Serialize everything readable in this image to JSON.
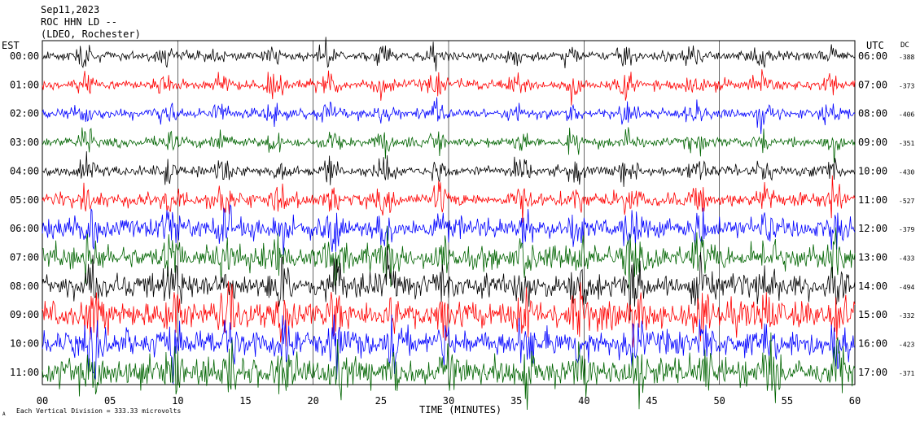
{
  "header": {
    "date": "Sep11,2023",
    "station": "ROC HHN LD --",
    "network": "(LDEO, Rochester)"
  },
  "left_axis_label": "EST",
  "right_axis_label": "UTC",
  "dc_label": "DC",
  "footer": {
    "xlabel": "TIME (MINUTES)",
    "scale_note": "Each Vertical Division = 333.33 microvolts",
    "corner_mark": "A"
  },
  "colors": {
    "black": "#000000",
    "red": "#ff0000",
    "blue": "#0000ff",
    "green": "#006400"
  },
  "chart_data": {
    "type": "line",
    "subtype": "seismogram-helicorder",
    "x_range_minutes": [
      0,
      60
    ],
    "x_ticks": [
      "00",
      "05",
      "10",
      "15",
      "20",
      "25",
      "30",
      "35",
      "40",
      "45",
      "50",
      "55",
      "60"
    ],
    "vertical_gridlines_minutes": [
      10,
      20,
      30,
      40,
      50,
      60
    ],
    "rows": [
      {
        "est": "00:00",
        "utc": "06:00",
        "dc": "-388",
        "color": "black",
        "level": 0.25
      },
      {
        "est": "01:00",
        "utc": "07:00",
        "dc": "-373",
        "color": "red",
        "level": 0.3
      },
      {
        "est": "02:00",
        "utc": "08:00",
        "dc": "-406",
        "color": "blue",
        "level": 0.28
      },
      {
        "est": "03:00",
        "utc": "09:00",
        "dc": "-351",
        "color": "green",
        "level": 0.28
      },
      {
        "est": "04:00",
        "utc": "10:00",
        "dc": "-430",
        "color": "black",
        "level": 0.32
      },
      {
        "est": "05:00",
        "utc": "11:00",
        "dc": "-527",
        "color": "red",
        "level": 0.45
      },
      {
        "est": "06:00",
        "utc": "12:00",
        "dc": "-379",
        "color": "blue",
        "level": 0.7
      },
      {
        "est": "07:00",
        "utc": "13:00",
        "dc": "-433",
        "color": "green",
        "level": 0.85
      },
      {
        "est": "08:00",
        "utc": "14:00",
        "dc": "-494",
        "color": "black",
        "level": 0.85
      },
      {
        "est": "09:00",
        "utc": "15:00",
        "dc": "-332",
        "color": "red",
        "level": 0.95
      },
      {
        "est": "10:00",
        "utc": "16:00",
        "dc": "-423",
        "color": "blue",
        "level": 0.95
      },
      {
        "est": "11:00",
        "utc": "17:00",
        "dc": "-371",
        "color": "green",
        "level": 1.0
      }
    ],
    "burst_minutes": [
      3,
      9,
      13,
      17,
      21,
      25,
      29,
      35,
      39,
      43,
      48,
      53,
      58
    ]
  }
}
